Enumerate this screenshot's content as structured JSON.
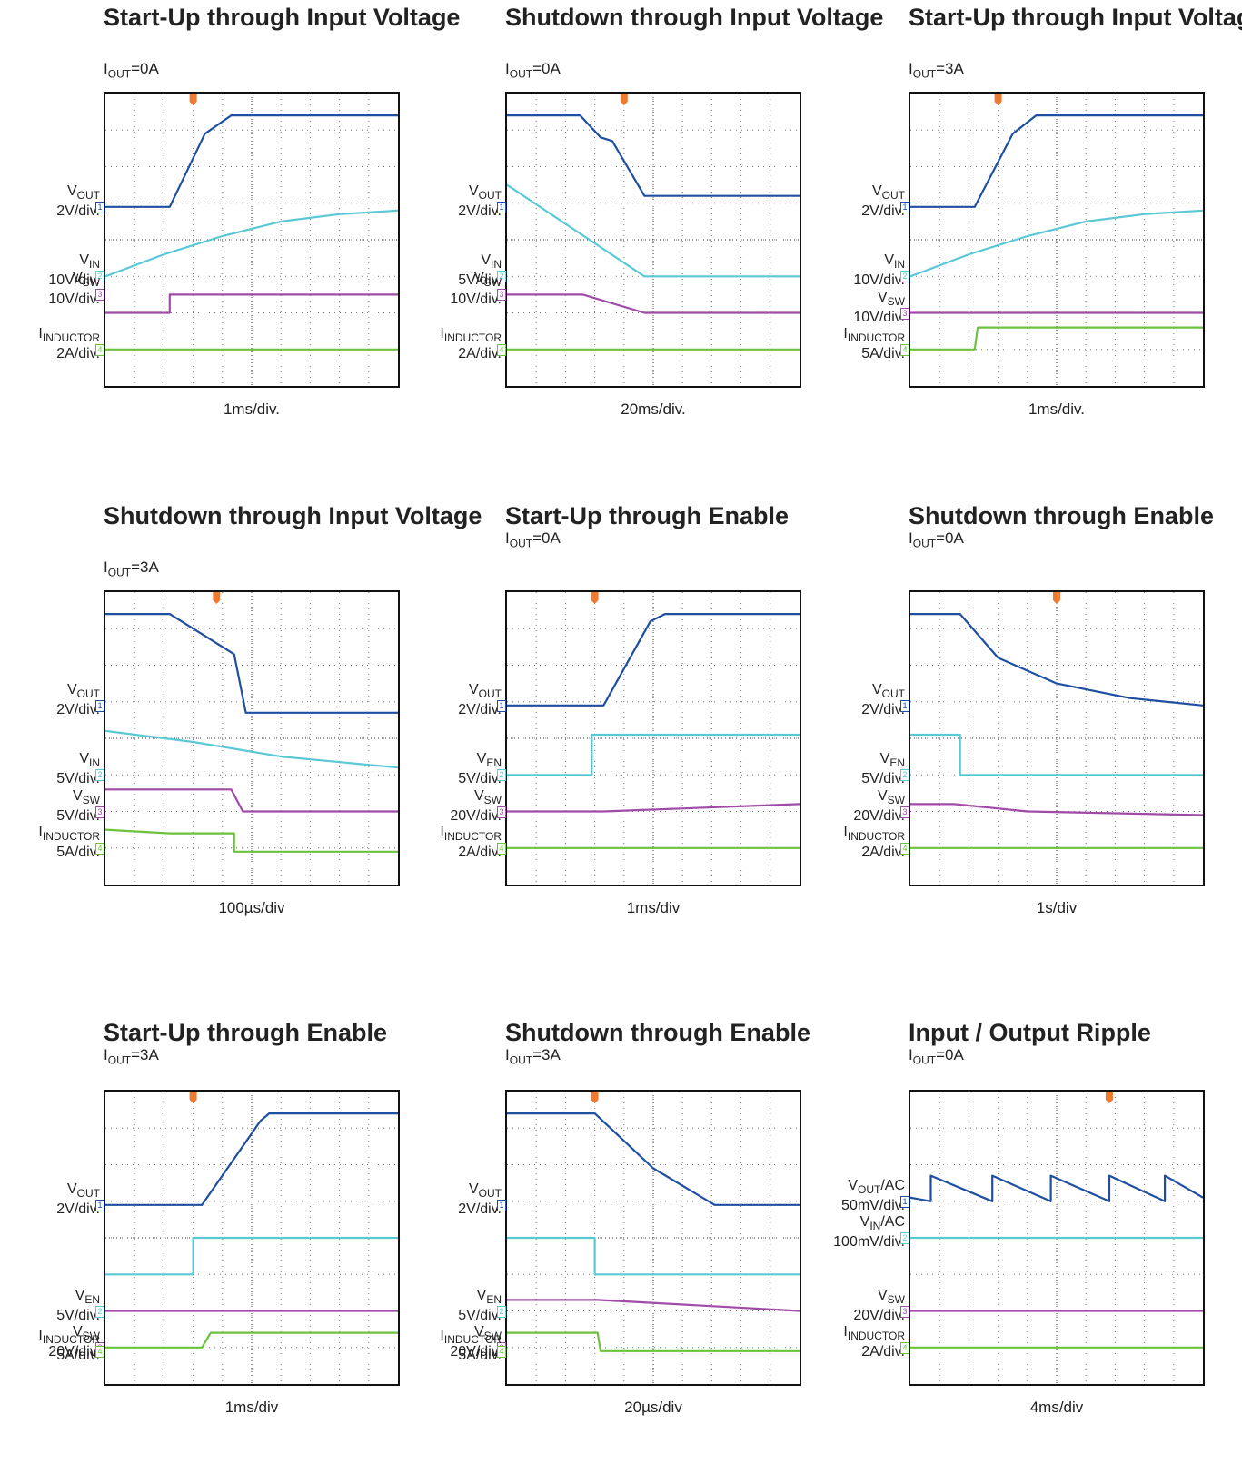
{
  "colors": {
    "vout": "#1f4fa0",
    "vin": "#5bc8d6",
    "vsw": "#a04ba8",
    "iind": "#6cc23f",
    "trigger": "#f07a30",
    "grid": "#777777"
  },
  "panels": [
    {
      "title": "Start-Up through Input Voltage",
      "cond_i": "I",
      "cond_sub": "OUT",
      "cond_val": "=0A",
      "timebase": "1ms/div.",
      "labels": [
        {
          "main": "V",
          "sub": "OUT",
          "scale": "2V/div.",
          "ch": "1"
        },
        {
          "main": "V",
          "sub": "IN",
          "scale": "10V/div.",
          "ch": "2"
        },
        {
          "main": "V",
          "sub": "SW",
          "scale": "10V/div.",
          "ch": "3"
        },
        {
          "main": "I",
          "sub": "INDUCTOR",
          "scale": "2A/div.",
          "ch": "4"
        }
      ]
    },
    {
      "title": "Shutdown through Input Voltage",
      "cond_i": "I",
      "cond_sub": "OUT",
      "cond_val": "=0A",
      "timebase": "20ms/div.",
      "labels": [
        {
          "main": "V",
          "sub": "OUT",
          "scale": "2V/div.",
          "ch": "1"
        },
        {
          "main": "V",
          "sub": "IN",
          "scale": "5V/div.",
          "ch": "2"
        },
        {
          "main": "V",
          "sub": "SW",
          "scale": "10V/div.",
          "ch": "3"
        },
        {
          "main": "I",
          "sub": "INDUCTOR",
          "scale": "2A/div.",
          "ch": "4"
        }
      ]
    },
    {
      "title": "Start-Up through Input Voltage",
      "cond_i": "I",
      "cond_sub": "OUT",
      "cond_val": "=3A",
      "timebase": "1ms/div.",
      "labels": [
        {
          "main": "V",
          "sub": "OUT",
          "scale": "2V/div.",
          "ch": "1"
        },
        {
          "main": "V",
          "sub": "IN",
          "scale": "10V/div.",
          "ch": "2"
        },
        {
          "main": "V",
          "sub": "SW",
          "scale": "10V/div.",
          "ch": "3"
        },
        {
          "main": "I",
          "sub": "INDUCTOR",
          "scale": "5A/div.",
          "ch": "4"
        }
      ]
    },
    {
      "title": "Shutdown through Input Voltage",
      "cond_i": "I",
      "cond_sub": "OUT",
      "cond_val": "=3A",
      "timebase": "100µs/div",
      "labels": [
        {
          "main": "V",
          "sub": "OUT",
          "scale": "2V/div.",
          "ch": "1"
        },
        {
          "main": "V",
          "sub": "IN",
          "scale": "5V/div.",
          "ch": "2"
        },
        {
          "main": "V",
          "sub": "SW",
          "scale": "5V/div.",
          "ch": "3"
        },
        {
          "main": "I",
          "sub": "INDUCTOR",
          "scale": "5A/div.",
          "ch": "4"
        }
      ]
    },
    {
      "title": "Start-Up through Enable",
      "cond_i": "I",
      "cond_sub": "OUT",
      "cond_val": "=0A",
      "timebase": "1ms/div",
      "labels": [
        {
          "main": "V",
          "sub": "OUT",
          "scale": "2V/div.",
          "ch": "1"
        },
        {
          "main": "V",
          "sub": "EN",
          "scale": "5V/div.",
          "ch": "2"
        },
        {
          "main": "V",
          "sub": "SW",
          "scale": "20V/div.",
          "ch": "3"
        },
        {
          "main": "I",
          "sub": "INDUCTOR",
          "scale": "2A/div.",
          "ch": "4"
        }
      ]
    },
    {
      "title": "Shutdown through Enable",
      "cond_i": "I",
      "cond_sub": "OUT",
      "cond_val": "=0A",
      "timebase": "1s/div",
      "labels": [
        {
          "main": "V",
          "sub": "OUT",
          "scale": "2V/div.",
          "ch": "1"
        },
        {
          "main": "V",
          "sub": "EN",
          "scale": "5V/div.",
          "ch": "2"
        },
        {
          "main": "V",
          "sub": "SW",
          "scale": "20V/div.",
          "ch": "3"
        },
        {
          "main": "I",
          "sub": "INDUCTOR",
          "scale": "2A/div.",
          "ch": "4"
        }
      ]
    },
    {
      "title": "Start-Up through Enable",
      "cond_i": "I",
      "cond_sub": "OUT",
      "cond_val": "=3A",
      "timebase": "1ms/div",
      "labels": [
        {
          "main": "V",
          "sub": "OUT",
          "scale": "2V/div.",
          "ch": "1"
        },
        {
          "main": "V",
          "sub": "EN",
          "scale": "5V/div.",
          "ch": "2"
        },
        {
          "main": "V",
          "sub": "SW",
          "scale": "20V/div.",
          "ch": "3"
        },
        {
          "main": "I",
          "sub": "INDUCTOR",
          "scale": "5A/div.",
          "ch": "4"
        }
      ]
    },
    {
      "title": "Shutdown through Enable",
      "cond_i": "I",
      "cond_sub": "OUT",
      "cond_val": "=3A",
      "timebase": "20µs/div",
      "labels": [
        {
          "main": "V",
          "sub": "OUT",
          "scale": "2V/div.",
          "ch": "1"
        },
        {
          "main": "V",
          "sub": "EN",
          "scale": "5V/div.",
          "ch": "2"
        },
        {
          "main": "V",
          "sub": "SW",
          "scale": "20V/div.",
          "ch": "3"
        },
        {
          "main": "I",
          "sub": "INDUCTOR",
          "scale": "5A/div.",
          "ch": "4"
        }
      ]
    },
    {
      "title": "Input / Output Ripple",
      "cond_i": "I",
      "cond_sub": "OUT",
      "cond_val": "=0A",
      "timebase": "4ms/div",
      "labels": [
        {
          "main": "V",
          "sub": "OUT",
          "suffix": "/AC",
          "scale": "50mV/div.",
          "ch": "1"
        },
        {
          "main": "V",
          "sub": "IN",
          "suffix": "/AC",
          "scale": "100mV/div.",
          "ch": "2"
        },
        {
          "main": "V",
          "sub": "SW",
          "scale": "20V/div.",
          "ch": "3"
        },
        {
          "main": "I",
          "sub": "INDUCTOR",
          "scale": "2A/div.",
          "ch": "4"
        }
      ]
    }
  ],
  "chart_data": {
    "type": "line",
    "note_units": "oscilloscope divisions: x 0-10, y 0-8 (0 = bottom)",
    "xlim": [
      0,
      10
    ],
    "ylim": [
      0,
      8
    ],
    "panels": [
      {
        "series": [
          {
            "name": "VOUT",
            "x": [
              0,
              2.2,
              3.4,
              4.3,
              10
            ],
            "y": [
              4.9,
              4.9,
              6.9,
              7.4,
              7.4
            ]
          },
          {
            "name": "VIN",
            "x": [
              0,
              2,
              4,
              6,
              8,
              10
            ],
            "y": [
              3.0,
              3.6,
              4.1,
              4.5,
              4.7,
              4.8
            ]
          },
          {
            "name": "VSW",
            "x": [
              0,
              2.2,
              2.2,
              4.8,
              4.8,
              10
            ],
            "y": [
              2.0,
              2.0,
              2.5,
              2.5,
              2.5,
              2.5
            ]
          },
          {
            "name": "IINDUCTOR",
            "x": [
              0,
              10
            ],
            "y": [
              1.0,
              1.0
            ]
          }
        ]
      },
      {
        "series": [
          {
            "name": "VOUT",
            "x": [
              0,
              2.5,
              3.2,
              3.6,
              4.7,
              10
            ],
            "y": [
              7.4,
              7.4,
              6.8,
              6.7,
              5.2,
              5.2
            ]
          },
          {
            "name": "VIN",
            "x": [
              0,
              4.7,
              10
            ],
            "y": [
              5.5,
              3.0,
              3.0
            ]
          },
          {
            "name": "VSW",
            "x": [
              0,
              2.6,
              4.7,
              10
            ],
            "y": [
              2.5,
              2.5,
              2.0,
              2.0
            ]
          },
          {
            "name": "IINDUCTOR",
            "x": [
              0,
              10
            ],
            "y": [
              1.0,
              1.0
            ]
          }
        ]
      },
      {
        "series": [
          {
            "name": "VOUT",
            "x": [
              0,
              2.2,
              3.5,
              4.3,
              10
            ],
            "y": [
              4.9,
              4.9,
              6.9,
              7.4,
              7.4
            ]
          },
          {
            "name": "VIN",
            "x": [
              0,
              2,
              4,
              6,
              8,
              10
            ],
            "y": [
              3.0,
              3.6,
              4.1,
              4.5,
              4.7,
              4.8
            ]
          },
          {
            "name": "VSW",
            "x": [
              0,
              2.2,
              4,
              6,
              8,
              10
            ],
            "y": [
              2.0,
              2.0,
              2.0,
              2.0,
              2.0,
              2.0
            ]
          },
          {
            "name": "IINDUCTOR",
            "x": [
              0,
              2.2,
              2.3,
              10
            ],
            "y": [
              1.0,
              1.0,
              1.6,
              1.6
            ]
          }
        ]
      },
      {
        "series": [
          {
            "name": "VOUT",
            "x": [
              0,
              2.2,
              4.4,
              4.8,
              10
            ],
            "y": [
              7.4,
              7.4,
              6.3,
              4.7,
              4.7
            ]
          },
          {
            "name": "VIN",
            "x": [
              0,
              3,
              6,
              10
            ],
            "y": [
              4.2,
              3.9,
              3.5,
              3.2
            ]
          },
          {
            "name": "VSW",
            "x": [
              0,
              4.3,
              4.7,
              10
            ],
            "y": [
              2.6,
              2.6,
              2.0,
              2.0
            ]
          },
          {
            "name": "IINDUCTOR",
            "x": [
              0,
              2.2,
              4.4,
              4.4,
              10
            ],
            "y": [
              1.5,
              1.4,
              1.4,
              0.9,
              0.9
            ]
          }
        ]
      },
      {
        "series": [
          {
            "name": "VOUT",
            "x": [
              0,
              3.3,
              4.9,
              5.4,
              10
            ],
            "y": [
              4.9,
              4.9,
              7.2,
              7.4,
              7.4
            ]
          },
          {
            "name": "VEN",
            "x": [
              0,
              2.9,
              2.9,
              10
            ],
            "y": [
              3.0,
              3.0,
              4.1,
              4.1
            ]
          },
          {
            "name": "VSW",
            "x": [
              0,
              3.3,
              10
            ],
            "y": [
              2.0,
              2.0,
              2.2
            ]
          },
          {
            "name": "IINDUCTOR",
            "x": [
              0,
              10
            ],
            "y": [
              1.0,
              1.0
            ]
          }
        ]
      },
      {
        "series": [
          {
            "name": "VOUT",
            "x": [
              0,
              1.7,
              3,
              5,
              7.5,
              10
            ],
            "y": [
              7.4,
              7.4,
              6.2,
              5.5,
              5.1,
              4.9
            ]
          },
          {
            "name": "VEN",
            "x": [
              0,
              1.7,
              1.7,
              10
            ],
            "y": [
              4.1,
              4.1,
              3.0,
              3.0
            ]
          },
          {
            "name": "VSW",
            "x": [
              0,
              1.5,
              4,
              10
            ],
            "y": [
              2.2,
              2.2,
              2.0,
              1.9
            ]
          },
          {
            "name": "IINDUCTOR",
            "x": [
              0,
              10
            ],
            "y": [
              1.0,
              1.0
            ]
          }
        ]
      },
      {
        "series": [
          {
            "name": "VOUT",
            "x": [
              0,
              3.3,
              5.3,
              5.6,
              10
            ],
            "y": [
              4.9,
              4.9,
              7.2,
              7.4,
              7.4
            ]
          },
          {
            "name": "VEN",
            "x": [
              0,
              3,
              3,
              10
            ],
            "y": [
              3.0,
              3.0,
              4.0,
              4.0
            ]
          },
          {
            "name": "VSW",
            "x": [
              0,
              3.3,
              10
            ],
            "y": [
              2.0,
              2.0,
              2.0
            ]
          },
          {
            "name": "IINDUCTOR",
            "x": [
              0,
              3.3,
              3.6,
              10
            ],
            "y": [
              1.0,
              1.0,
              1.4,
              1.4
            ]
          }
        ]
      },
      {
        "series": [
          {
            "name": "VOUT",
            "x": [
              0,
              3,
              5,
              7.1,
              10
            ],
            "y": [
              7.4,
              7.4,
              5.9,
              4.9,
              4.9
            ]
          },
          {
            "name": "VEN",
            "x": [
              0,
              3,
              3,
              10
            ],
            "y": [
              4.0,
              4.0,
              3.0,
              3.0
            ]
          },
          {
            "name": "VSW",
            "x": [
              0,
              3.1,
              10
            ],
            "y": [
              2.3,
              2.3,
              2.0
            ]
          },
          {
            "name": "IINDUCTOR",
            "x": [
              0,
              3.1,
              3.2,
              10
            ],
            "y": [
              1.4,
              1.4,
              0.9,
              0.9
            ]
          }
        ]
      },
      {
        "series": [
          {
            "name": "VOUT",
            "x": [
              0,
              0.7,
              0.7,
              2.8,
              2.8,
              4.8,
              4.8,
              6.8,
              6.8,
              8.7,
              8.7,
              10
            ],
            "y": [
              5.1,
              5.0,
              5.7,
              5.0,
              5.7,
              5.0,
              5.7,
              5.0,
              5.7,
              5.0,
              5.7,
              5.1
            ]
          },
          {
            "name": "VIN",
            "x": [
              0,
              10
            ],
            "y": [
              4.0,
              4.0
            ]
          },
          {
            "name": "VSW",
            "x": [
              0,
              10
            ],
            "y": [
              2.0,
              2.0
            ]
          },
          {
            "name": "IINDUCTOR",
            "x": [
              0,
              10
            ],
            "y": [
              1.0,
              1.0
            ]
          }
        ]
      }
    ]
  }
}
